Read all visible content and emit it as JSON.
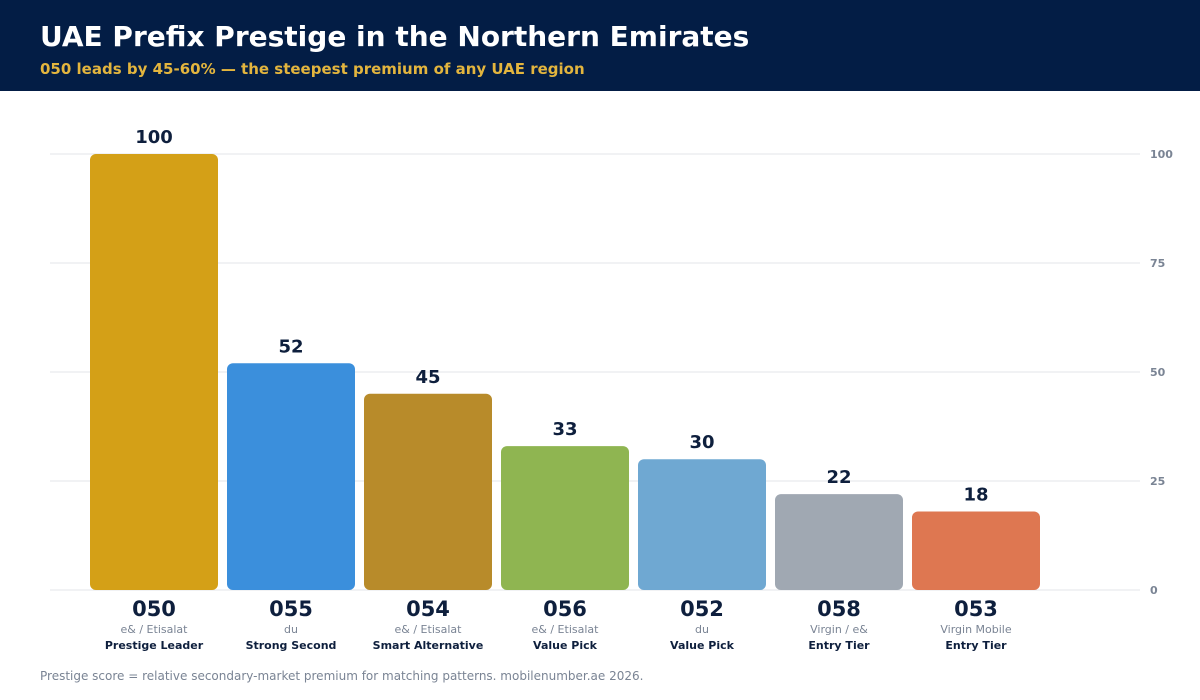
{
  "header": {
    "title": "UAE Prefix Prestige in the Northern Emirates",
    "subtitle": "050 leads by 45-60% — the steepest premium of any UAE region"
  },
  "footer": {
    "note": "Prestige score = relative secondary-market premium for matching patterns. mobilenumber.ae 2026."
  },
  "colors": {
    "header_bg": "#031d45",
    "subtitle": "#e3b53e",
    "value_label": "#0e1f3d",
    "grid": "#e3e6ea",
    "axis_tick": "#7a8494"
  },
  "chart_data": {
    "type": "bar",
    "ylim": [
      0,
      100
    ],
    "y_ticks": [
      0,
      25,
      50,
      75,
      100
    ],
    "grid": true,
    "bars": [
      {
        "prefix": "050",
        "value": 100,
        "operator": "e& / Etisalat",
        "tier": "Prestige Leader",
        "color": "#d4a017"
      },
      {
        "prefix": "055",
        "value": 52,
        "operator": "du",
        "tier": "Strong Second",
        "color": "#3b8fdc"
      },
      {
        "prefix": "054",
        "value": 45,
        "operator": "e& / Etisalat",
        "tier": "Smart Alternative",
        "color": "#b88b2a"
      },
      {
        "prefix": "056",
        "value": 33,
        "operator": "e& / Etisalat",
        "tier": "Value Pick",
        "color": "#8fb551"
      },
      {
        "prefix": "052",
        "value": 30,
        "operator": "du",
        "tier": "Value Pick",
        "color": "#6fa8d2"
      },
      {
        "prefix": "058",
        "value": 22,
        "operator": "Virgin / e&",
        "tier": "Entry Tier",
        "color": "#a0a8b2"
      },
      {
        "prefix": "053",
        "value": 18,
        "operator": "Virgin Mobile",
        "tier": "Entry Tier",
        "color": "#de7751"
      }
    ]
  }
}
